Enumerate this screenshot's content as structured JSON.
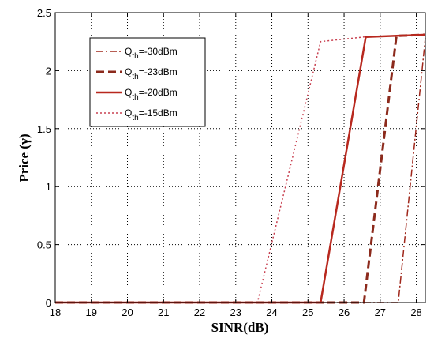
{
  "chart_data": {
    "type": "line",
    "xlabel": "SINR(dB)",
    "ylabel": "Price (γ)",
    "xlim": [
      18,
      28.25
    ],
    "ylim": [
      0,
      2.5
    ],
    "xticks": [
      "18",
      "19",
      "20",
      "21",
      "22",
      "23",
      "24",
      "25",
      "26",
      "27",
      "28"
    ],
    "yticks": [
      "0",
      "0.5",
      "1",
      "1.5",
      "2",
      "2.5"
    ],
    "grid": true,
    "legend_position": "top-left",
    "series": [
      {
        "name_main": "Q",
        "name_sub": "th",
        "name_rest": "=-30dBm",
        "style": "dashdot",
        "width": 1.5,
        "color": "#a0281c",
        "x": [
          18,
          27.5,
          28.25
        ],
        "y": [
          0,
          0,
          2.28
        ]
      },
      {
        "name_main": "Q",
        "name_sub": "th",
        "name_rest": "=-23dBm",
        "style": "dashed",
        "width": 3,
        "color": "#8c2a1c",
        "x": [
          18,
          26.55,
          27.45,
          28.25
        ],
        "y": [
          0,
          0,
          2.3,
          2.31
        ]
      },
      {
        "name_main": "Q",
        "name_sub": "th",
        "name_rest": "=-20dBm",
        "style": "solid",
        "width": 2.5,
        "color": "#b8281e",
        "x": [
          18,
          25.35,
          26.6,
          28.25
        ],
        "y": [
          0,
          0,
          2.29,
          2.31
        ]
      },
      {
        "name_main": "Q",
        "name_sub": "th",
        "name_rest": "=-15dBm",
        "style": "dotted",
        "width": 1.5,
        "color": "#c84050",
        "x": [
          18,
          23.6,
          25.35,
          26.55,
          28.25
        ],
        "y": [
          0,
          0,
          2.25,
          2.29,
          2.31
        ]
      }
    ]
  }
}
